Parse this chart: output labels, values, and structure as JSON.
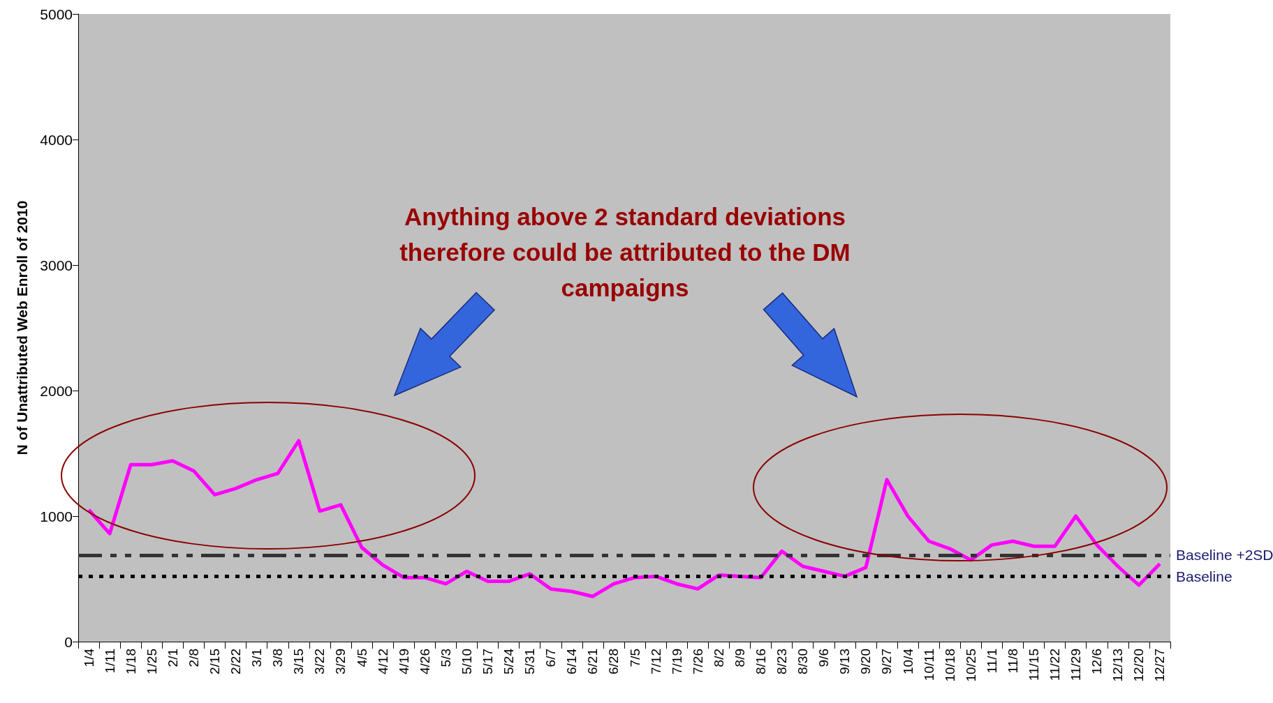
{
  "chart_data": {
    "type": "line",
    "ylabel": "N of Unattributed Web Enroll of 2010",
    "annotations": [
      "Anything above 2 standard deviations therefore could be attributed to the DM campaigns"
    ],
    "categories": [
      "1/4",
      "1/11",
      "1/18",
      "1/25",
      "2/1",
      "2/8",
      "2/15",
      "2/22",
      "3/1",
      "3/8",
      "3/15",
      "3/22",
      "3/29",
      "4/5",
      "4/12",
      "4/19",
      "4/26",
      "5/3",
      "5/10",
      "5/17",
      "5/24",
      "5/31",
      "6/7",
      "6/14",
      "6/21",
      "6/28",
      "7/5",
      "7/12",
      "7/19",
      "7/26",
      "8/2",
      "8/9",
      "8/16",
      "8/23",
      "8/30",
      "9/6",
      "9/13",
      "9/20",
      "9/27",
      "10/4",
      "10/11",
      "10/18",
      "10/25",
      "11/1",
      "11/8",
      "11/15",
      "11/22",
      "11/29",
      "12/6",
      "12/13",
      "12/20",
      "12/27"
    ],
    "series": [
      {
        "color": "#ff00ff",
        "values": [
          1050,
          860,
          1410,
          1410,
          1440,
          1360,
          1170,
          1220,
          1290,
          1340,
          1600,
          1040,
          1090,
          750,
          610,
          510,
          510,
          460,
          560,
          480,
          480,
          540,
          420,
          400,
          360,
          460,
          510,
          520,
          460,
          420,
          530,
          520,
          510,
          720,
          600,
          560,
          520,
          590,
          1290,
          1000,
          800,
          740,
          650,
          770,
          800,
          760,
          760,
          1000,
          770,
          600,
          450,
          620
        ]
      }
    ],
    "ylim": [
      0,
      5000
    ],
    "yticks": [
      0,
      1000,
      2000,
      3000,
      4000,
      5000
    ],
    "grid": false,
    "ref_lines": [
      {
        "axis": "y",
        "value": 690,
        "label": "Baseline +2SD",
        "color": "#333333",
        "line_style": "dashdot"
      },
      {
        "axis": "y",
        "value": 520,
        "label": "Baseline",
        "color": "#000000",
        "line_style": "dotted"
      }
    ]
  }
}
